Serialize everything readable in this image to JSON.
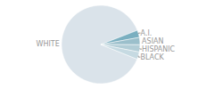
{
  "chart_data": {
    "type": "pie",
    "categories": [
      "WHITE",
      "A.I.",
      "ASIAN",
      "HISPANIC",
      "BLACK"
    ],
    "values": [
      88,
      3,
      3,
      3,
      3
    ],
    "colors": [
      "#dae3ea",
      "#7aafc0",
      "#9bbfcb",
      "#b2cdd6",
      "#c6dae2"
    ]
  }
}
